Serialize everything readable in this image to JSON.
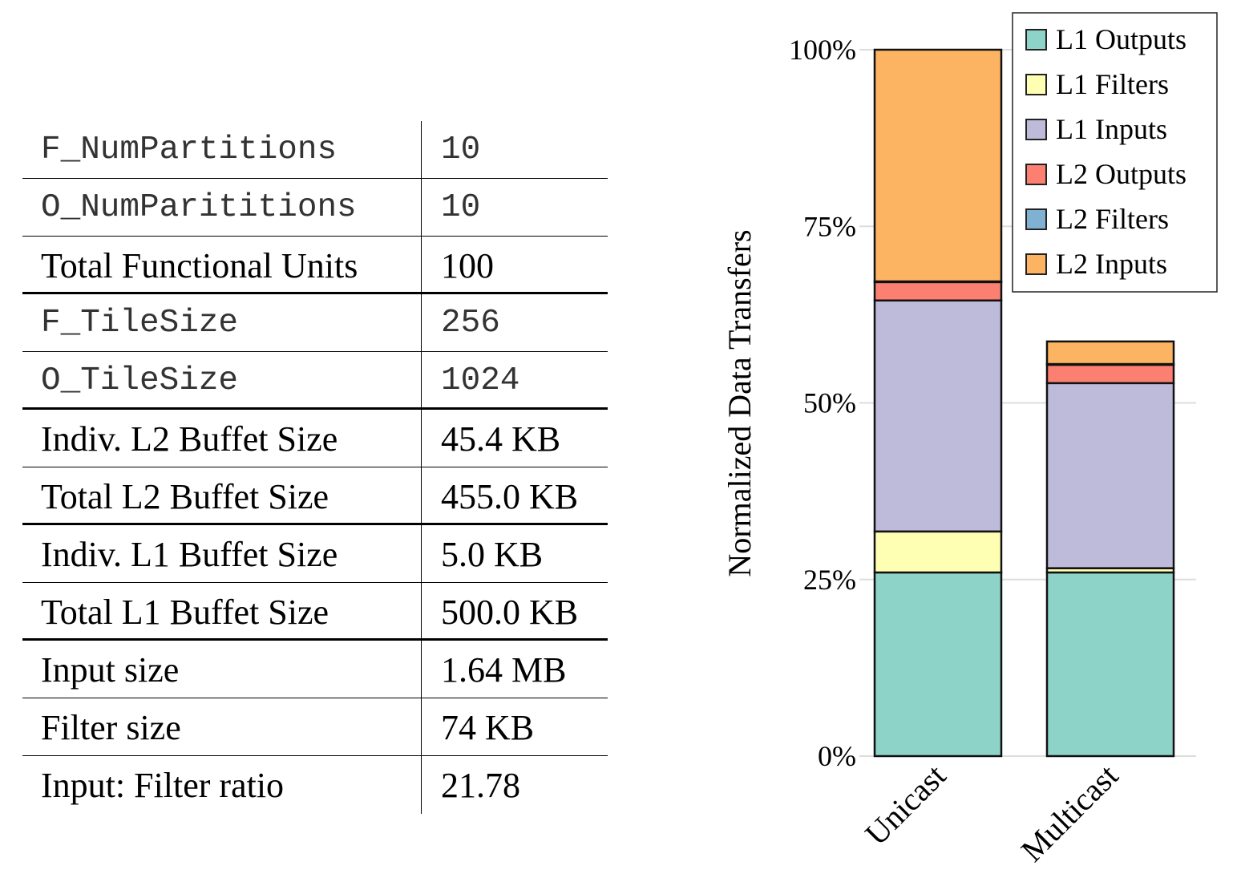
{
  "table": {
    "rows": [
      {
        "name": "F_NumPartitions",
        "value": "10",
        "mono": true,
        "group_end": false
      },
      {
        "name": "O_NumParititions",
        "value": "10",
        "mono": true,
        "group_end": false
      },
      {
        "name": "Total Functional Units",
        "value": "100",
        "mono": false,
        "group_end": true
      },
      {
        "name": "F_TileSize",
        "value": "256",
        "mono": true,
        "group_end": false
      },
      {
        "name": "O_TileSize",
        "value": "1024",
        "mono": true,
        "group_end": true
      },
      {
        "name": "Indiv. L2 Buffet Size",
        "value": "45.4 KB",
        "mono": false,
        "group_end": false
      },
      {
        "name": "Total L2 Buffet Size",
        "value": "455.0 KB",
        "mono": false,
        "group_end": true
      },
      {
        "name": "Indiv. L1 Buffet Size",
        "value": "5.0 KB",
        "mono": false,
        "group_end": false
      },
      {
        "name": "Total L1 Buffet Size",
        "value": "500.0 KB",
        "mono": false,
        "group_end": true
      },
      {
        "name": "Input size",
        "value": "1.64 MB",
        "mono": false,
        "group_end": false
      },
      {
        "name": "Filter size",
        "value": "74 KB",
        "mono": false,
        "group_end": false
      },
      {
        "name": "Input: Filter ratio",
        "value": "21.78",
        "mono": false,
        "group_end": false
      }
    ]
  },
  "chart_data": {
    "type": "bar",
    "stacked": true,
    "title": "",
    "xlabel": "",
    "ylabel": "Normalized Data Transfers",
    "ylim": [
      0,
      100
    ],
    "yticks": [
      0,
      25,
      50,
      75,
      100
    ],
    "ytick_labels": [
      "0%",
      "25%",
      "50%",
      "75%",
      "100%"
    ],
    "categories": [
      "Unicast",
      "Multicast"
    ],
    "grid": true,
    "legend_position": "top-right",
    "series": [
      {
        "name": "L1 Outputs",
        "color": "#8dd3c7",
        "values": [
          26.0,
          26.0
        ]
      },
      {
        "name": "L1 Filters",
        "color": "#ffffb3",
        "values": [
          5.8,
          0.6
        ]
      },
      {
        "name": "L1 Inputs",
        "color": "#bebada",
        "values": [
          32.7,
          26.2
        ]
      },
      {
        "name": "L2 Outputs",
        "color": "#fb8072",
        "values": [
          2.6,
          2.6
        ]
      },
      {
        "name": "L2 Filters",
        "color": "#80b1d3",
        "values": [
          0.1,
          0.1
        ]
      },
      {
        "name": "L2 Inputs",
        "color": "#fdb462",
        "values": [
          32.8,
          3.2
        ]
      }
    ]
  }
}
